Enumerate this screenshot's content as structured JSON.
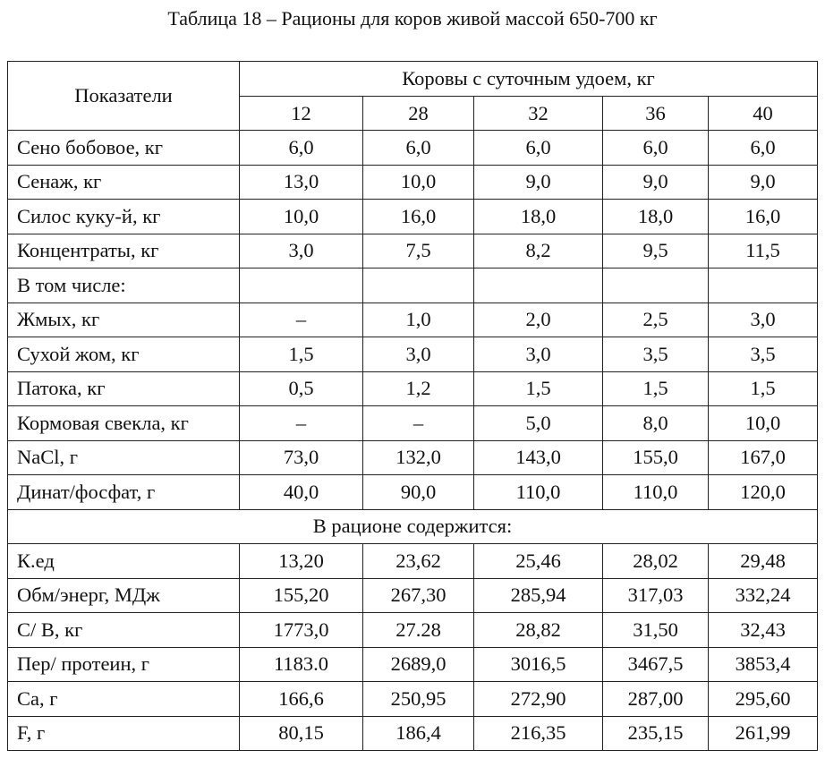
{
  "caption": "Таблица 18 – Рационы для коров живой массой 650-700 кг",
  "header": {
    "indicator": "Показатели",
    "group": "Коровы с суточным удоем, кг",
    "yields": [
      "12",
      "28",
      "32",
      "36",
      "40"
    ]
  },
  "rows_feed": [
    {
      "label": "Сено бобовое, кг",
      "values": [
        "6,0",
        "6,0",
        "6,0",
        "6,0",
        "6,0"
      ]
    },
    {
      "label": "Сенаж, кг",
      "values": [
        "13,0",
        "10,0",
        "9,0",
        "9,0",
        "9,0"
      ]
    },
    {
      "label": "Силос куку-й, кг",
      "values": [
        "10,0",
        "16,0",
        "18,0",
        "18,0",
        "16,0"
      ]
    },
    {
      "label": "Концентраты, кг",
      "values": [
        "3,0",
        "7,5",
        "8,2",
        "9,5",
        "11,5"
      ]
    },
    {
      "label": "В том числе:",
      "values": [
        "",
        "",
        "",
        "",
        ""
      ]
    },
    {
      "label": "Жмых, кг",
      "values": [
        "–",
        "1,0",
        "2,0",
        "2,5",
        "3,0"
      ]
    },
    {
      "label": "Сухой жом, кг",
      "values": [
        "1,5",
        "3,0",
        "3,0",
        "3,5",
        "3,5"
      ]
    },
    {
      "label": "Патока, кг",
      "values": [
        "0,5",
        "1,2",
        "1,5",
        "1,5",
        "1,5"
      ]
    },
    {
      "label": "Кормовая свекла, кг",
      "values": [
        "–",
        "–",
        "5,0",
        "8,0",
        "10,0"
      ]
    },
    {
      "label": "NaCl, г",
      "values": [
        "73,0",
        "132,0",
        "143,0",
        "155,0",
        "167,0"
      ]
    },
    {
      "label": "Динат/фосфат, г",
      "values": [
        "40,0",
        "90,0",
        "110,0",
        "110,0",
        "120,0"
      ]
    }
  ],
  "section_label": "В рационе содержится:",
  "rows_content": [
    {
      "label": "К.ед",
      "values": [
        "13,20",
        "23,62",
        "25,46",
        "28,02",
        "29,48"
      ]
    },
    {
      "label": "Обм/энерг, МДж",
      "values": [
        "155,20",
        "267,30",
        "285,94",
        "317,03",
        "332,24"
      ]
    },
    {
      "label": "С/ В, кг",
      "values": [
        "1773,0",
        "27.28",
        "28,82",
        "31,50",
        "32,43"
      ]
    },
    {
      "label": "Пер/ протеин, г",
      "values": [
        "1183.0",
        "2689,0",
        "3016,5",
        "3467,5",
        "3853,4"
      ]
    },
    {
      "label": "Са, г",
      "values": [
        "166,6",
        "250,95",
        "272,90",
        "287,00",
        "295,60"
      ]
    },
    {
      "label": "F, г",
      "values": [
        "80,15",
        "186,4",
        "216,35",
        "235,15",
        "261,99"
      ]
    }
  ]
}
